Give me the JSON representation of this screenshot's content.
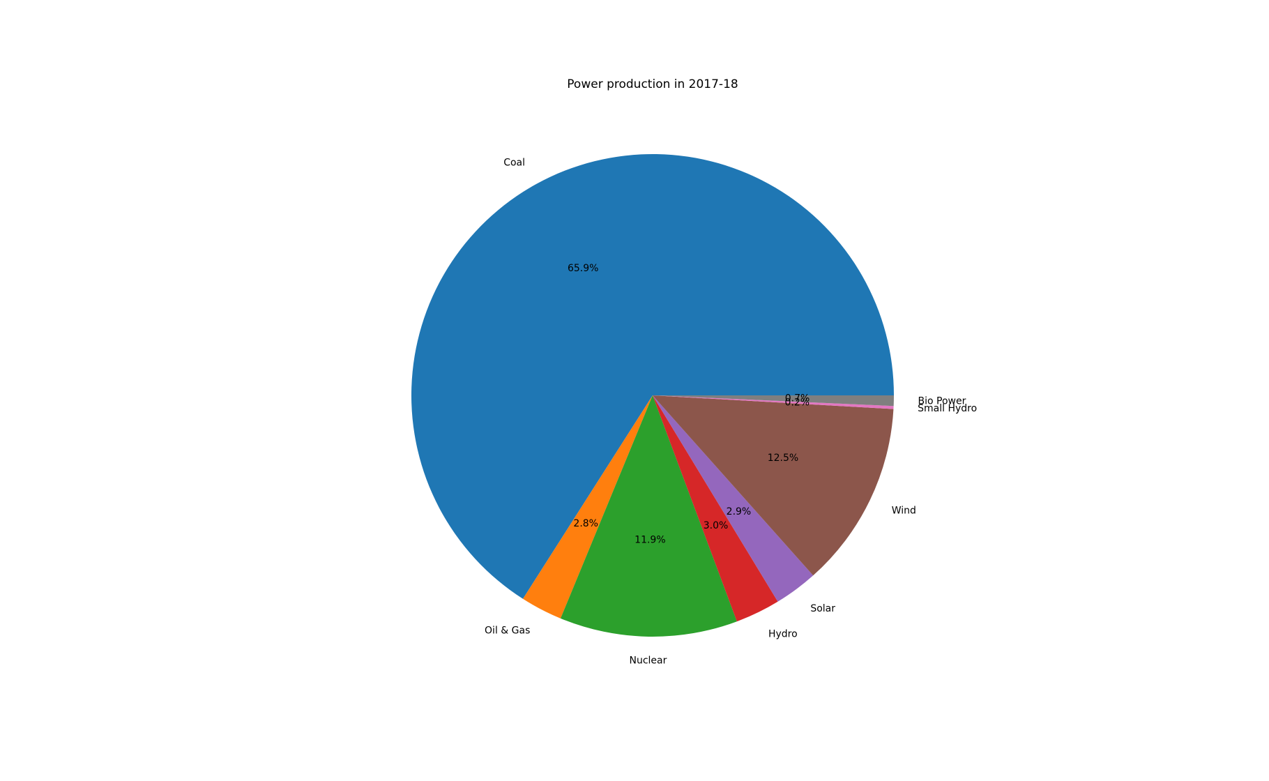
{
  "chart_data": {
    "type": "pie",
    "title": "Power production in 2017-18",
    "categories": [
      "Coal",
      "Oil & Gas",
      "Nuclear",
      "Hydro",
      "Solar",
      "Wind",
      "Small Hydro",
      "Bio Power"
    ],
    "values": [
      65.9,
      2.8,
      11.9,
      3.0,
      2.9,
      12.5,
      0.2,
      0.7
    ],
    "value_labels": [
      "65.9%",
      "2.8%",
      "11.9%",
      "3.0%",
      "2.9%",
      "12.5%",
      "0.2%",
      "0.7%"
    ],
    "colors": [
      "#1f77b4",
      "#ff7f0e",
      "#2ca02c",
      "#d62728",
      "#9467bd",
      "#8c564b",
      "#e377c2",
      "#7f7f7f"
    ],
    "start_angle_deg": 0,
    "direction": "counterclockwise",
    "legend": "none"
  }
}
